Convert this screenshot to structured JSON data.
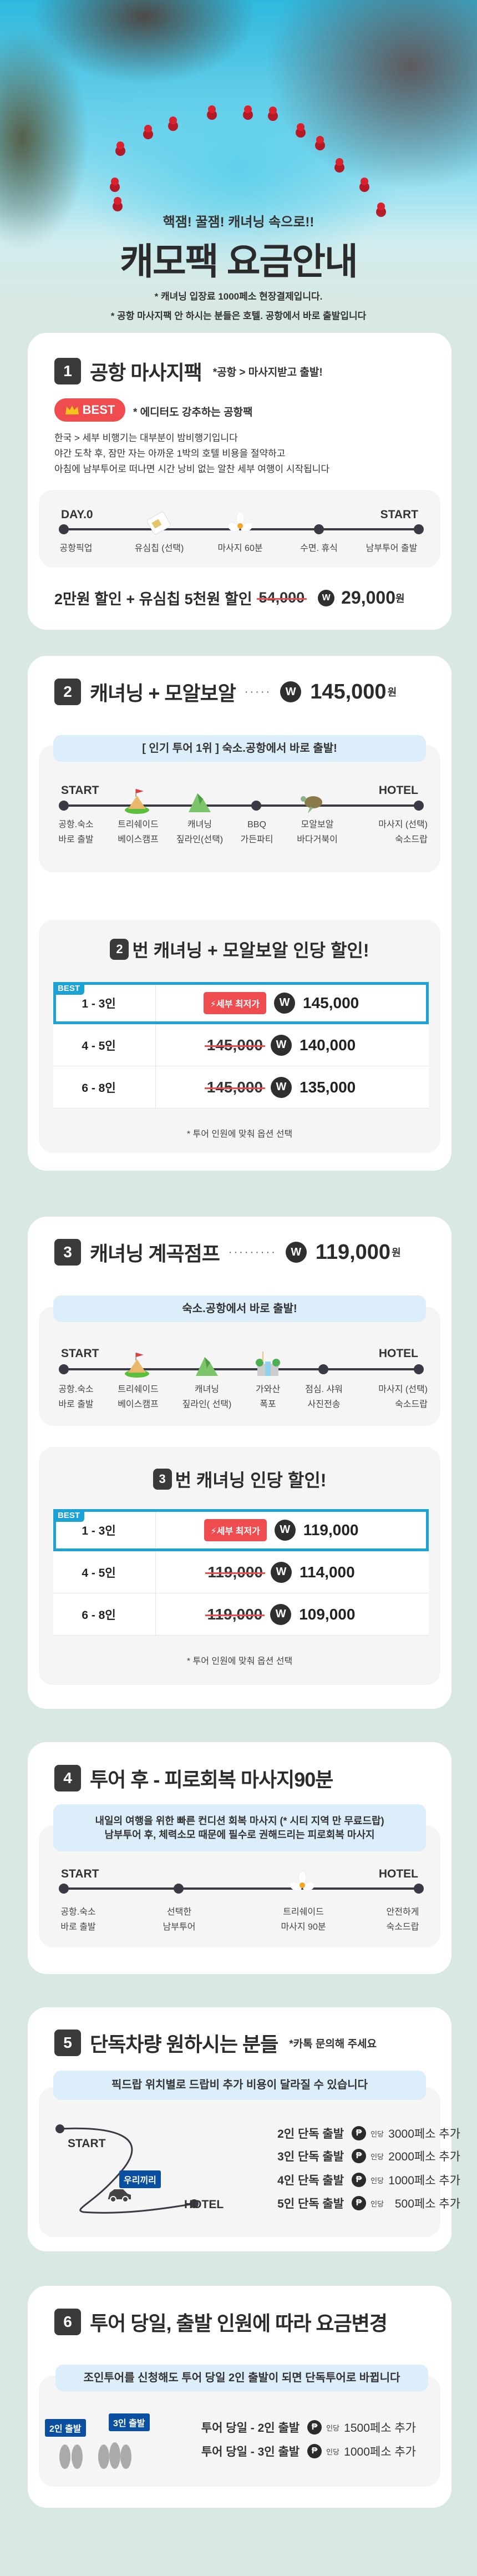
{
  "hero": {
    "subtitle": "핵잼! 꿀잼! 캐녀닝 속으로!!",
    "title": "캐모팩 요금안내",
    "notes": [
      "* 캐녀닝 입장료 1000페소 현장결제입니다.",
      "* 공항 마사지팩 안 하시는 분들은 호텔. 공항에서 바로 출발입니다"
    ]
  },
  "colors": {
    "background": "#d9e8e3",
    "accent_red": "#ef4c4f",
    "accent_blue": "#1aa3d4",
    "banner": "#dbeef9",
    "bubble_blue": "#0a4fa0"
  },
  "currency_icon": "W",
  "peso_icon": "₱",
  "s1": {
    "num": "1",
    "title": "공항 마사지팩",
    "subtitle": "*공항 > 마사지받고 출발!",
    "best": "BEST",
    "best_icon": "crown-icon",
    "best_note": "* 에디터도 강추하는 공항팩",
    "body": [
      "한국 > 세부 비행기는 대부분이 밤비행기입니다",
      "야간 도착 후, 잠만 자는 아까운 1박의 호텔 비용을 절약하고",
      "아침에 남부투어로 떠나면 시간 낭비 없는 알찬 세부 여행이 시작됩니다"
    ],
    "tl_start": "DAY.0",
    "tl_end": "START",
    "labels": [
      "공항픽업",
      "유심칩 (선택)",
      "마사지 60분",
      "수면. 휴식",
      "남부투어 출발"
    ],
    "promo": "2만원 할인 + 유심칩 5천원 할인",
    "original": "54,000",
    "final": "29,000",
    "unit": "원"
  },
  "s2": {
    "num": "2",
    "title": "캐녀닝 + 모알보알",
    "price": "145,000",
    "unit": "원",
    "banner": "[ 인기 투어 1위 ]   숙소.공항에서 바로 출발!",
    "tl_start": "START",
    "tl_end": "HOTEL",
    "labels": [
      [
        "공항.숙소",
        "바로 출발"
      ],
      [
        "트리쉐이드",
        "베이스캠프"
      ],
      [
        "캐녀닝",
        "짚라인(선택)"
      ],
      [
        "BBQ",
        "가든파티"
      ],
      [
        "모알보알",
        "바다거북이"
      ],
      [
        "마사지 (선택)",
        "숙소드랍"
      ]
    ],
    "discount_num": "2",
    "discount_title": "번 캐녀닝 + 모알보알 인당 할인!",
    "best_tag": "BEST",
    "lowest": "⚡세부 최저가",
    "rows": [
      {
        "people": "1 - 3인",
        "original": "",
        "price": "145,000"
      },
      {
        "people": "4 - 5인",
        "original": "145,000",
        "price": "140,000"
      },
      {
        "people": "6 - 8인",
        "original": "145,000",
        "price": "135,000"
      }
    ],
    "note": "* 투어 인원에 맞춰 옵션 선택"
  },
  "s3": {
    "num": "3",
    "title": "캐녀닝 계곡점프",
    "price": "119,000",
    "unit": "원",
    "banner": "숙소.공항에서 바로 출발!",
    "tl_start": "START",
    "tl_end": "HOTEL",
    "labels": [
      [
        "공항.숙소",
        "바로 출발"
      ],
      [
        "트리쉐이드",
        "베이스캠프"
      ],
      [
        "캐녀닝",
        "짚라인( 선택)"
      ],
      [
        "가와산",
        "폭포"
      ],
      [
        "점심. 샤워",
        "사진전송"
      ],
      [
        "마사지 (선택)",
        "숙소드랍"
      ]
    ],
    "discount_num": "3",
    "discount_title": "번 캐녀닝 인당 할인!",
    "best_tag": "BEST",
    "lowest": "⚡세부 최저가",
    "rows": [
      {
        "people": "1 - 3인",
        "original": "",
        "price": "119,000"
      },
      {
        "people": "4 - 5인",
        "original": "119,000",
        "price": "114,000"
      },
      {
        "people": "6 - 8인",
        "original": "119,000",
        "price": "109,000"
      }
    ],
    "note": "* 투어 인원에 맞춰 옵션 선택"
  },
  "s4": {
    "num": "4",
    "title": "투어 후 - 피로회복 마사지90분",
    "banner": [
      "내일의 여행을 위한 빠른 컨디션 회복 마사지 (* 시티 지역 만 무료드랍)",
      "남부투어 후, 체력소모 때문에 필수로 권해드리는 피로회복 마사지"
    ],
    "tl_start": "START",
    "tl_end": "HOTEL",
    "labels": [
      [
        "공항.숙소",
        "바로 출발"
      ],
      [
        "선택한",
        "남부투어"
      ],
      [
        "트리쉐이드",
        "마사지 90분"
      ],
      [
        "안전하게",
        "숙소드랍"
      ]
    ]
  },
  "s5": {
    "num": "5",
    "title": "단독차량 원하시는 분들",
    "subtitle": "*카톡 문의해 주세요",
    "banner": "픽드랍 위치별로 드랍비 추가 비용이 달라질 수 있습니다",
    "start": "START",
    "end": "HOTEL",
    "bubble": "우리끼리",
    "per": "인당",
    "rows": [
      {
        "label": "2인 단독 출발",
        "amount": "3000페소 추가"
      },
      {
        "label": "3인 단독 출발",
        "amount": "2000페소 추가"
      },
      {
        "label": "4인 단독 출발",
        "amount": "1000페소 추가"
      },
      {
        "label": "5인 단독 출발",
        "amount": "500페소 추가"
      }
    ]
  },
  "s6": {
    "num": "6",
    "title": "투어 당일, 출발 인원에 따라 요금변경",
    "banner": "조인투어를 신청해도 투어 당일 2인 출발이 되면 단독투어로 바뀝니다",
    "bubble2": "2인 출발",
    "bubble3": "3인 출발",
    "per": "인당",
    "rows": [
      {
        "label": "투어 당일 - 2인 출발",
        "amount": "1500페소 추가"
      },
      {
        "label": "투어 당일 - 3인 출발",
        "amount": "1000페소 추가"
      }
    ]
  }
}
